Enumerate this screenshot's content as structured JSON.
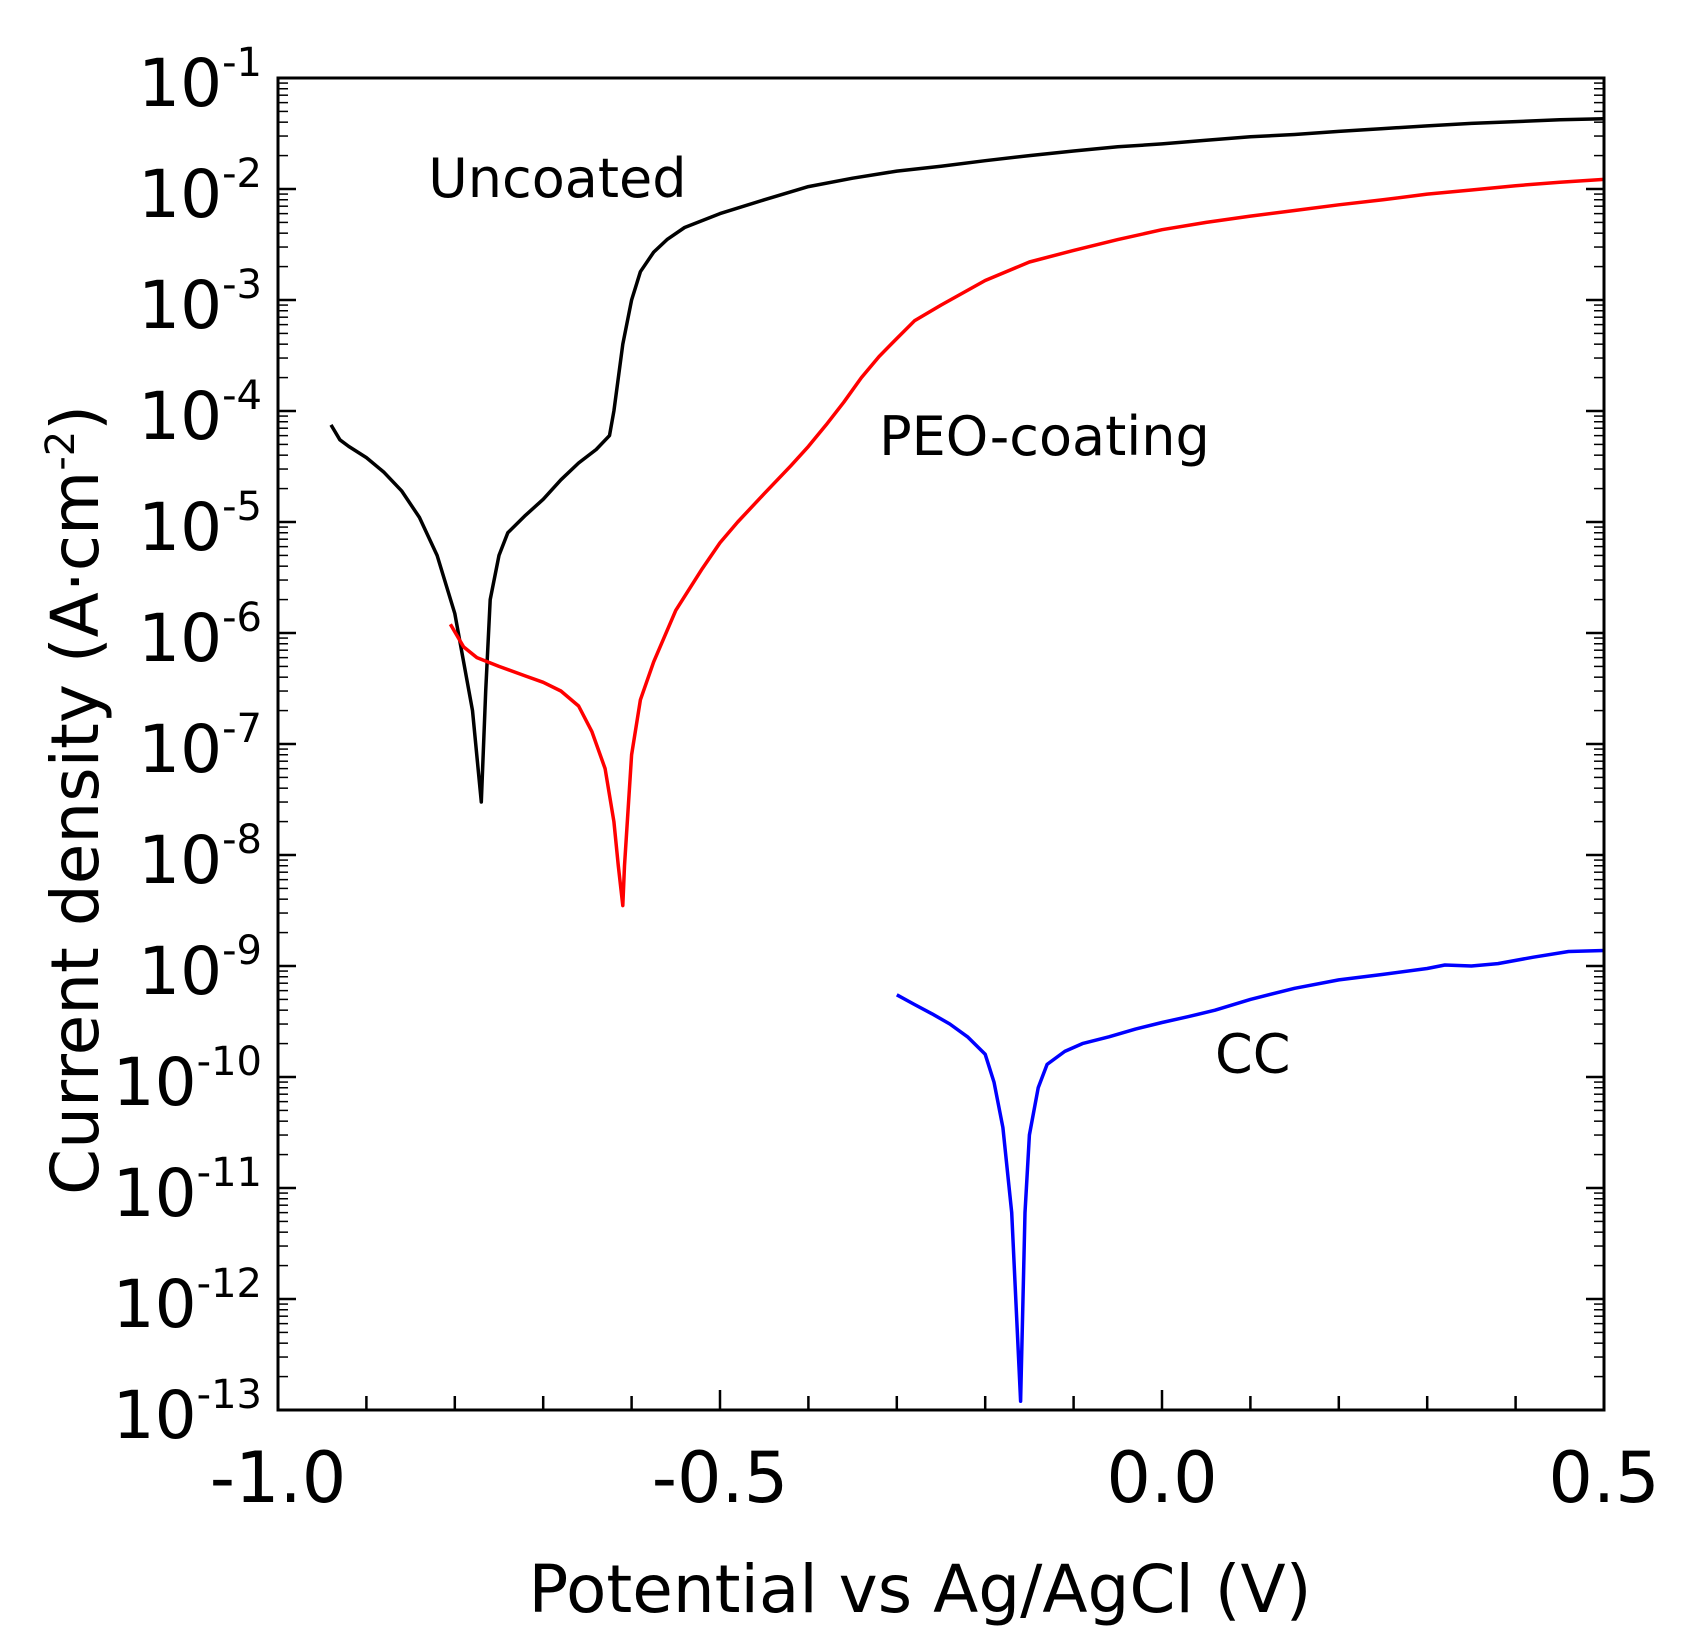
{
  "chart_data": {
    "type": "line",
    "title": "",
    "xlabel": "Potential vs Ag/AgCl (V)",
    "ylabel": "Current density (A·cm",
    "ylabel_sup": "-2",
    "ylabel_end": ")",
    "xscale": "linear",
    "yscale": "log",
    "xlim": [
      -1.0,
      0.5
    ],
    "ylim": [
      1e-13,
      0.1
    ],
    "xticks": [
      -1.0,
      -0.5,
      0.0,
      0.5
    ],
    "xtick_labels": [
      "-1.0",
      "-0.5",
      "0.0",
      "0.5"
    ],
    "yticks_exp": [
      -1,
      -2,
      -3,
      -4,
      -5,
      -6,
      -7,
      -8,
      -9,
      -10,
      -11,
      -12,
      -13
    ],
    "ytick_base": "10",
    "legend": "inline labels",
    "series": [
      {
        "name": "Uncoated",
        "color": "#000000",
        "label_at": [
          -0.83,
          0.0085
        ],
        "points": [
          [
            -0.94,
            7.5e-05
          ],
          [
            -0.93,
            5.5e-05
          ],
          [
            -0.92,
            4.8e-05
          ],
          [
            -0.9,
            3.8e-05
          ],
          [
            -0.88,
            2.8e-05
          ],
          [
            -0.86,
            1.9e-05
          ],
          [
            -0.84,
            1.1e-05
          ],
          [
            -0.82,
            5e-06
          ],
          [
            -0.8,
            1.5e-06
          ],
          [
            -0.78,
            2e-07
          ],
          [
            -0.77,
            3e-08
          ],
          [
            -0.765,
            3e-07
          ],
          [
            -0.76,
            2e-06
          ],
          [
            -0.75,
            5e-06
          ],
          [
            -0.74,
            8e-06
          ],
          [
            -0.72,
            1.15e-05
          ],
          [
            -0.7,
            1.6e-05
          ],
          [
            -0.68,
            2.4e-05
          ],
          [
            -0.66,
            3.4e-05
          ],
          [
            -0.64,
            4.5e-05
          ],
          [
            -0.625,
            6e-05
          ],
          [
            -0.62,
            0.0001
          ],
          [
            -0.61,
            0.0004
          ],
          [
            -0.6,
            0.001
          ],
          [
            -0.59,
            0.0018
          ],
          [
            -0.575,
            0.0027
          ],
          [
            -0.56,
            0.0035
          ],
          [
            -0.54,
            0.0045
          ],
          [
            -0.5,
            0.006
          ],
          [
            -0.45,
            0.008
          ],
          [
            -0.4,
            0.0105
          ],
          [
            -0.35,
            0.0125
          ],
          [
            -0.3,
            0.0145
          ],
          [
            -0.25,
            0.016
          ],
          [
            -0.2,
            0.018
          ],
          [
            -0.15,
            0.02
          ],
          [
            -0.1,
            0.022
          ],
          [
            -0.05,
            0.024
          ],
          [
            0.0,
            0.0255
          ],
          [
            0.05,
            0.0275
          ],
          [
            0.1,
            0.0295
          ],
          [
            0.15,
            0.031
          ],
          [
            0.2,
            0.033
          ],
          [
            0.25,
            0.035
          ],
          [
            0.3,
            0.037
          ],
          [
            0.35,
            0.039
          ],
          [
            0.4,
            0.0405
          ],
          [
            0.45,
            0.042
          ],
          [
            0.5,
            0.043
          ]
        ]
      },
      {
        "name": "PEO-coating",
        "color": "#ff0000",
        "label_at": [
          -0.32,
          4e-05
        ],
        "points": [
          [
            -0.805,
            1.2e-06
          ],
          [
            -0.79,
            7.5e-07
          ],
          [
            -0.775,
            6e-07
          ],
          [
            -0.75,
            5e-07
          ],
          [
            -0.72,
            4.1e-07
          ],
          [
            -0.7,
            3.6e-07
          ],
          [
            -0.68,
            3e-07
          ],
          [
            -0.66,
            2.2e-07
          ],
          [
            -0.645,
            1.3e-07
          ],
          [
            -0.63,
            6e-08
          ],
          [
            -0.62,
            2e-08
          ],
          [
            -0.615,
            8e-09
          ],
          [
            -0.61,
            3.5e-09
          ],
          [
            -0.608,
            8e-09
          ],
          [
            -0.6,
            8e-08
          ],
          [
            -0.59,
            2.5e-07
          ],
          [
            -0.575,
            5.5e-07
          ],
          [
            -0.55,
            1.6e-06
          ],
          [
            -0.52,
            3.8e-06
          ],
          [
            -0.5,
            6.5e-06
          ],
          [
            -0.48,
            1e-05
          ],
          [
            -0.45,
            1.8e-05
          ],
          [
            -0.42,
            3.2e-05
          ],
          [
            -0.4,
            4.8e-05
          ],
          [
            -0.38,
            7.5e-05
          ],
          [
            -0.36,
            0.00012
          ],
          [
            -0.34,
            0.0002
          ],
          [
            -0.32,
            0.00031
          ],
          [
            -0.3,
            0.00045
          ],
          [
            -0.28,
            0.00065
          ],
          [
            -0.25,
            0.0009
          ],
          [
            -0.2,
            0.0015
          ],
          [
            -0.15,
            0.0022
          ],
          [
            -0.1,
            0.0028
          ],
          [
            -0.05,
            0.0035
          ],
          [
            0.0,
            0.0043
          ],
          [
            0.05,
            0.005
          ],
          [
            0.1,
            0.0057
          ],
          [
            0.15,
            0.0064
          ],
          [
            0.2,
            0.0072
          ],
          [
            0.25,
            0.008
          ],
          [
            0.3,
            0.009
          ],
          [
            0.35,
            0.0098
          ],
          [
            0.4,
            0.0107
          ],
          [
            0.45,
            0.0115
          ],
          [
            0.5,
            0.0122
          ]
        ]
      },
      {
        "name": "CC",
        "color": "#0000ff",
        "label_at": [
          0.06,
          1.1e-10
        ],
        "points": [
          [
            -0.3,
            5.5e-10
          ],
          [
            -0.28,
            4.5e-10
          ],
          [
            -0.26,
            3.7e-10
          ],
          [
            -0.24,
            3e-10
          ],
          [
            -0.22,
            2.3e-10
          ],
          [
            -0.2,
            1.6e-10
          ],
          [
            -0.19,
            9e-11
          ],
          [
            -0.18,
            3.5e-11
          ],
          [
            -0.17,
            6e-12
          ],
          [
            -0.16,
            1.2e-13
          ],
          [
            -0.155,
            6e-12
          ],
          [
            -0.15,
            3e-11
          ],
          [
            -0.14,
            8e-11
          ],
          [
            -0.13,
            1.3e-10
          ],
          [
            -0.11,
            1.7e-10
          ],
          [
            -0.09,
            2e-10
          ],
          [
            -0.06,
            2.3e-10
          ],
          [
            -0.03,
            2.7e-10
          ],
          [
            0.0,
            3.1e-10
          ],
          [
            0.03,
            3.5e-10
          ],
          [
            0.06,
            4e-10
          ],
          [
            0.1,
            5e-10
          ],
          [
            0.15,
            6.3e-10
          ],
          [
            0.2,
            7.5e-10
          ],
          [
            0.25,
            8.4e-10
          ],
          [
            0.3,
            9.5e-10
          ],
          [
            0.32,
            1.02e-09
          ],
          [
            0.35,
            1e-09
          ],
          [
            0.38,
            1.05e-09
          ],
          [
            0.42,
            1.2e-09
          ],
          [
            0.46,
            1.35e-09
          ],
          [
            0.5,
            1.38e-09
          ]
        ]
      }
    ]
  }
}
